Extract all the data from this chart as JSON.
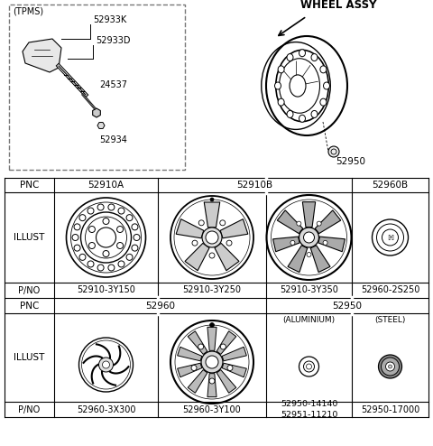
{
  "bg_color": "#ffffff",
  "tpms_parts": [
    "52933K",
    "52933D",
    "24537",
    "52934"
  ],
  "wheel_assy_label": "WHEEL ASSY",
  "wheel_part": "52950",
  "table_cols": [
    5,
    60,
    175,
    295,
    390,
    475
  ],
  "table_rows": [
    197,
    213,
    313,
    330,
    347,
    445,
    462
  ],
  "row1_pnc": [
    "PNC",
    "52910A",
    "52910B",
    "52960B"
  ],
  "row1_pno": [
    "P/NO",
    "52910-3Y150",
    "52910-3Y250",
    "52910-3Y350",
    "52960-2S250"
  ],
  "row2_pnc": [
    "PNC",
    "52960",
    "52950"
  ],
  "row2_sub": [
    "(ALUMINIUM)",
    "(STEEL)"
  ],
  "row2_pno": [
    "P/NO",
    "52960-3X300",
    "52960-3Y100",
    "52950-14140\n52951-11210",
    "52950-17000"
  ]
}
